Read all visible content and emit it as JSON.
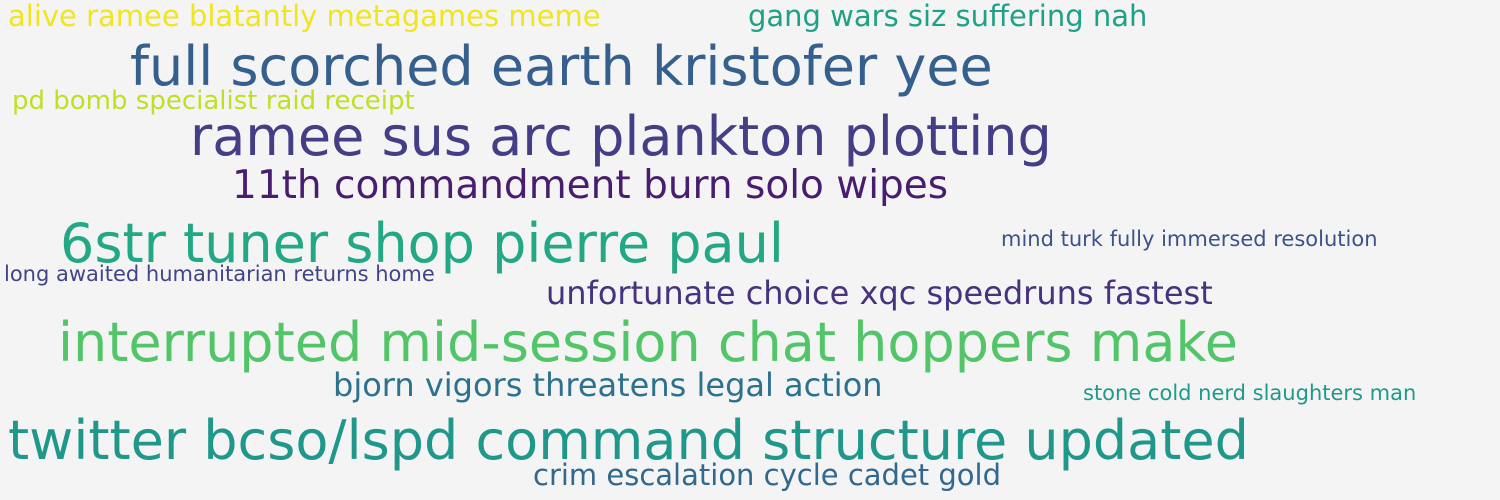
{
  "phrases": [
    {
      "text": "alive ramee blatantly metagames meme",
      "color": "#f1e51d"
    },
    {
      "text": "gang wars siz suffering nah",
      "color": "#1fa188"
    },
    {
      "text": "full scorched earth kristofer yee",
      "color": "#355f8d"
    },
    {
      "text": "pd bomb specialist raid receipt",
      "color": "#c0df25"
    },
    {
      "text": "ramee sus arc plankton plotting",
      "color": "#433e85"
    },
    {
      "text": "11th commandment burn solo wipes",
      "color": "#481c6e"
    },
    {
      "text": "6str tuner shop pierre paul",
      "color": "#22a884"
    },
    {
      "text": "mind turk fully immersed resolution",
      "color": "#3b528b"
    },
    {
      "text": "long awaited humanitarian returns home",
      "color": "#414487"
    },
    {
      "text": "unfortunate choice xqc speedruns fastest",
      "color": "#46327e"
    },
    {
      "text": "interrupted mid-session chat hoppers make",
      "color": "#52c569"
    },
    {
      "text": "bjorn vigors threatens legal action",
      "color": "#2c728e"
    },
    {
      "text": "stone cold nerd slaughters man",
      "color": "#1f9a8a"
    },
    {
      "text": "twitter bcso/lspd command structure updated",
      "color": "#1f988b"
    },
    {
      "text": "crim escalation cycle cadet gold",
      "color": "#31688e"
    }
  ]
}
